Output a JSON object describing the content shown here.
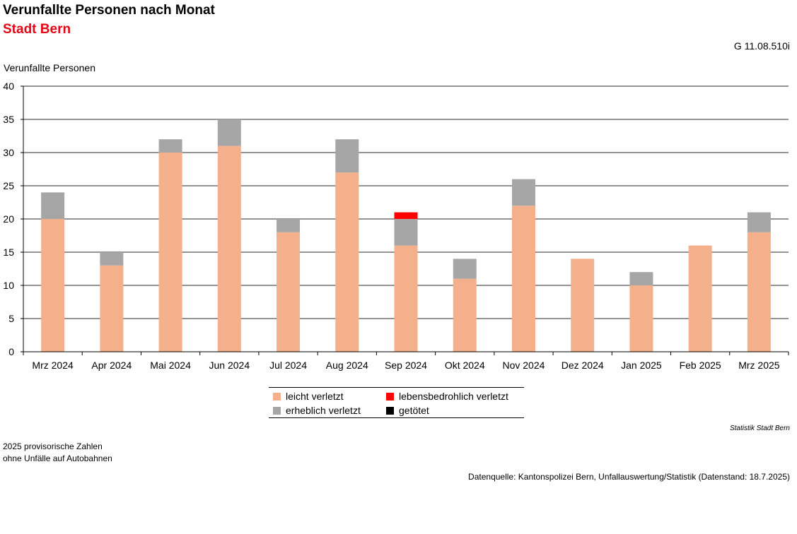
{
  "header": {
    "title": "Verunfallte Personen nach Monat",
    "subtitle": "Stadt Bern",
    "code": "G 11.08.510i"
  },
  "colors": {
    "subtitle": "#e30613",
    "leicht": "#f4b08a",
    "erheblich": "#a6a6a6",
    "lebensbedrohlich": "#ff0000",
    "getoetet": "#000000",
    "grid": "#555555"
  },
  "chart_data": {
    "type": "bar",
    "stacked": true,
    "ylabel": "Verunfallte Personen",
    "xlabel": "",
    "ylim": [
      0,
      40
    ],
    "yticks": [
      0,
      5,
      10,
      15,
      20,
      25,
      30,
      35,
      40
    ],
    "grid": true,
    "legend_position": "bottom-center",
    "categories": [
      "Mrz 2024",
      "Apr 2024",
      "Mai 2024",
      "Jun 2024",
      "Jul 2024",
      "Aug 2024",
      "Sep 2024",
      "Okt 2024",
      "Nov 2024",
      "Dez 2024",
      "Jan 2025",
      "Feb 2025",
      "Mrz 2025"
    ],
    "series": [
      {
        "name": "leicht verletzt",
        "color": "#f4b08a",
        "values": [
          20,
          13,
          30,
          31,
          18,
          27,
          16,
          11,
          22,
          14,
          10,
          16,
          18
        ]
      },
      {
        "name": "erheblich verletzt",
        "color": "#a6a6a6",
        "values": [
          4,
          2,
          2,
          4,
          2,
          5,
          4,
          3,
          4,
          0,
          2,
          0,
          3
        ]
      },
      {
        "name": "lebensbedrohlich verletzt",
        "color": "#ff0000",
        "values": [
          0,
          0,
          0,
          0,
          0,
          0,
          1,
          0,
          0,
          0,
          0,
          0,
          0
        ]
      },
      {
        "name": "getötet",
        "color": "#000000",
        "values": [
          0,
          0,
          0,
          0,
          0,
          0,
          0,
          0,
          0,
          0,
          0,
          0,
          0
        ]
      }
    ]
  },
  "footer": {
    "credit": "Statistik Stadt Bern",
    "note1": "2025 provisorische Zahlen",
    "note2": "ohne Unfälle auf Autobahnen",
    "source": "Datenquelle: Kantonspolizei Bern, Unfallauswertung/Statistik (Datenstand: 18.7.2025)"
  }
}
